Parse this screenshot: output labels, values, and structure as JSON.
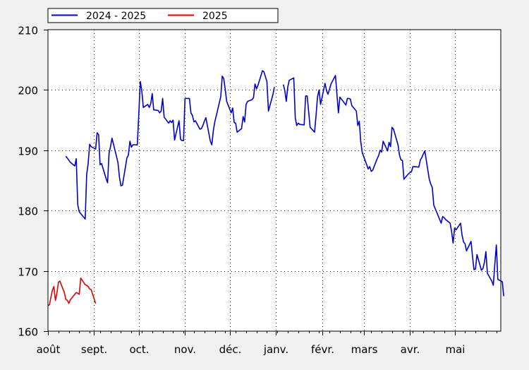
{
  "chart_data": {
    "type": "line",
    "title": "",
    "xlabel": "",
    "ylabel": "",
    "ylim": [
      160,
      210
    ],
    "yticks": [
      160,
      170,
      180,
      190,
      200,
      210
    ],
    "grid": true,
    "legend_position": "top-left",
    "x_domain": [
      "2024-08-01",
      "2025-05-31"
    ],
    "months": [
      {
        "label": "août",
        "date": "2024-08-01"
      },
      {
        "label": "sept.",
        "date": "2024-09-01"
      },
      {
        "label": "oct.",
        "date": "2024-10-01"
      },
      {
        "label": "nov.",
        "date": "2024-11-01"
      },
      {
        "label": "déc.",
        "date": "2024-12-01"
      },
      {
        "label": "janv.",
        "date": "2025-01-01"
      },
      {
        "label": "févr.",
        "date": "2025-02-01"
      },
      {
        "label": "mars",
        "date": "2025-03-01"
      },
      {
        "label": "avr.",
        "date": "2025-04-01"
      },
      {
        "label": "mai",
        "date": "2025-05-01"
      }
    ],
    "series": [
      {
        "name": "2024 - 2025",
        "color": "#0000cc",
        "points": [
          [
            "2024-08-13",
            189.0
          ],
          [
            "2024-08-14",
            188.7
          ],
          [
            "2024-08-16",
            188.0
          ],
          [
            "2024-08-19",
            187.4
          ],
          [
            "2024-08-20",
            188.6
          ],
          [
            "2024-08-21",
            181.0
          ],
          [
            "2024-08-22",
            179.8
          ],
          [
            "2024-08-26",
            178.6
          ],
          [
            "2024-08-27",
            186.0
          ],
          [
            "2024-08-28",
            187.8
          ],
          [
            "2024-08-29",
            191.0
          ],
          [
            "2024-08-30",
            190.6
          ],
          [
            "2024-09-02",
            190.2
          ],
          [
            "2024-09-03",
            192.9
          ],
          [
            "2024-09-04",
            192.6
          ],
          [
            "2024-09-05",
            187.6
          ],
          [
            "2024-09-06",
            187.8
          ],
          [
            "2024-09-09",
            185.3
          ],
          [
            "2024-09-10",
            184.6
          ],
          [
            "2024-09-11",
            189.5
          ],
          [
            "2024-09-12",
            190.6
          ],
          [
            "2024-09-13",
            192.0
          ],
          [
            "2024-09-16",
            189.0
          ],
          [
            "2024-09-17",
            187.9
          ],
          [
            "2024-09-18",
            185.5
          ],
          [
            "2024-09-19",
            184.1
          ],
          [
            "2024-09-20",
            184.2
          ],
          [
            "2024-09-23",
            188.7
          ],
          [
            "2024-09-24",
            189.2
          ],
          [
            "2024-09-25",
            191.5
          ],
          [
            "2024-09-26",
            190.5
          ],
          [
            "2024-09-27",
            190.9
          ],
          [
            "2024-09-30",
            190.9
          ],
          [
            "2024-10-01",
            196.0
          ],
          [
            "2024-10-02",
            201.4
          ],
          [
            "2024-10-03",
            199.9
          ],
          [
            "2024-10-04",
            197.1
          ],
          [
            "2024-10-07",
            197.6
          ],
          [
            "2024-10-08",
            197.1
          ],
          [
            "2024-10-09",
            197.7
          ],
          [
            "2024-10-10",
            199.4
          ],
          [
            "2024-10-11",
            196.7
          ],
          [
            "2024-10-14",
            196.6
          ],
          [
            "2024-10-15",
            196.2
          ],
          [
            "2024-10-16",
            196.5
          ],
          [
            "2024-10-17",
            198.6
          ],
          [
            "2024-10-18",
            195.5
          ],
          [
            "2024-10-21",
            194.5
          ],
          [
            "2024-10-22",
            194.9
          ],
          [
            "2024-10-23",
            194.6
          ],
          [
            "2024-10-24",
            195.0
          ],
          [
            "2024-10-25",
            191.7
          ],
          [
            "2024-10-28",
            194.9
          ],
          [
            "2024-10-29",
            191.8
          ],
          [
            "2024-10-30",
            191.6
          ],
          [
            "2024-10-31",
            191.6
          ],
          [
            "2024-11-01",
            198.6
          ],
          [
            "2024-11-04",
            198.6
          ],
          [
            "2024-11-05",
            196.2
          ],
          [
            "2024-11-06",
            195.8
          ],
          [
            "2024-11-07",
            194.7
          ],
          [
            "2024-11-08",
            194.9
          ],
          [
            "2024-11-11",
            193.5
          ],
          [
            "2024-11-12",
            193.6
          ],
          [
            "2024-11-13",
            194.1
          ],
          [
            "2024-11-14",
            194.8
          ],
          [
            "2024-11-15",
            195.4
          ],
          [
            "2024-11-18",
            191.5
          ],
          [
            "2024-11-19",
            190.9
          ],
          [
            "2024-11-20",
            193.2
          ],
          [
            "2024-11-21",
            194.7
          ],
          [
            "2024-11-22",
            195.7
          ],
          [
            "2024-11-25",
            198.9
          ],
          [
            "2024-11-26",
            202.3
          ],
          [
            "2024-11-27",
            201.9
          ],
          [
            "2024-11-28",
            200.1
          ],
          [
            "2024-11-29",
            198.1
          ],
          [
            "2024-12-02",
            196.2
          ],
          [
            "2024-12-03",
            197.0
          ],
          [
            "2024-12-04",
            194.6
          ],
          [
            "2024-12-05",
            194.5
          ],
          [
            "2024-12-06",
            193.0
          ],
          [
            "2024-12-09",
            193.6
          ],
          [
            "2024-12-10",
            195.6
          ],
          [
            "2024-12-11",
            194.7
          ],
          [
            "2024-12-12",
            197.6
          ],
          [
            "2024-12-13",
            198.1
          ],
          [
            "2024-12-16",
            198.4
          ],
          [
            "2024-12-17",
            198.7
          ],
          [
            "2024-12-18",
            201.0
          ],
          [
            "2024-12-19",
            200.2
          ],
          [
            "2024-12-20",
            200.8
          ],
          [
            "2024-12-23",
            203.2
          ],
          [
            "2024-12-24",
            203.0
          ],
          [
            "2024-12-26",
            201.4
          ],
          [
            "2024-12-27",
            196.5
          ],
          [
            "2024-12-30",
            199.2
          ],
          [
            "2024-12-31",
            200.5
          ],
          null,
          [
            "2025-01-06",
            200.9
          ],
          [
            "2025-01-07",
            199.9
          ],
          [
            "2025-01-08",
            198.1
          ],
          [
            "2025-01-09",
            200.5
          ],
          [
            "2025-01-10",
            201.6
          ],
          [
            "2025-01-13",
            202.0
          ],
          [
            "2025-01-14",
            195.4
          ],
          [
            "2025-01-15",
            194.1
          ],
          [
            "2025-01-16",
            194.5
          ],
          [
            "2025-01-17",
            194.3
          ],
          [
            "2025-01-20",
            194.2
          ],
          [
            "2025-01-21",
            199.0
          ],
          [
            "2025-01-22",
            199.0
          ],
          [
            "2025-01-23",
            196.4
          ],
          [
            "2025-01-24",
            193.8
          ],
          [
            "2025-01-27",
            193.0
          ],
          [
            "2025-01-28",
            195.8
          ],
          [
            "2025-01-29",
            198.9
          ],
          [
            "2025-01-30",
            200.0
          ],
          [
            "2025-01-31",
            197.6
          ],
          [
            "2025-02-03",
            201.1
          ],
          [
            "2025-02-04",
            199.9
          ],
          [
            "2025-02-05",
            199.3
          ],
          [
            "2025-02-06",
            200.1
          ],
          [
            "2025-02-07",
            201.0
          ],
          [
            "2025-02-10",
            202.4
          ],
          [
            "2025-02-11",
            199.3
          ],
          [
            "2025-02-12",
            196.2
          ],
          [
            "2025-02-13",
            198.8
          ],
          [
            "2025-02-14",
            198.5
          ],
          [
            "2025-02-17",
            197.5
          ],
          [
            "2025-02-18",
            198.6
          ],
          [
            "2025-02-19",
            198.6
          ],
          [
            "2025-02-20",
            198.5
          ],
          [
            "2025-02-21",
            197.4
          ],
          [
            "2025-02-24",
            196.5
          ],
          [
            "2025-02-25",
            194.1
          ],
          [
            "2025-02-26",
            194.8
          ],
          [
            "2025-02-27",
            191.4
          ],
          [
            "2025-02-28",
            189.6
          ],
          [
            "2025-03-03",
            187.6
          ],
          [
            "2025-03-04",
            186.9
          ],
          [
            "2025-03-05",
            187.3
          ],
          [
            "2025-03-06",
            186.5
          ],
          [
            "2025-03-07",
            186.7
          ],
          [
            "2025-03-10",
            188.6
          ],
          [
            "2025-03-11",
            189.1
          ],
          [
            "2025-03-12",
            190.0
          ],
          [
            "2025-03-13",
            189.7
          ],
          [
            "2025-03-14",
            191.5
          ],
          [
            "2025-03-17",
            189.9
          ],
          [
            "2025-03-18",
            191.3
          ],
          [
            "2025-03-19",
            190.6
          ],
          [
            "2025-03-20",
            193.8
          ],
          [
            "2025-03-21",
            193.5
          ],
          [
            "2025-03-24",
            190.9
          ],
          [
            "2025-03-25",
            189.2
          ],
          [
            "2025-03-26",
            188.4
          ],
          [
            "2025-03-27",
            188.3
          ],
          [
            "2025-03-28",
            185.2
          ],
          [
            "2025-03-31",
            186.1
          ],
          [
            "2025-04-01",
            186.3
          ],
          [
            "2025-04-02",
            186.4
          ],
          [
            "2025-04-03",
            187.3
          ],
          [
            "2025-04-04",
            187.3
          ],
          [
            "2025-04-07",
            187.2
          ],
          [
            "2025-04-08",
            188.4
          ],
          [
            "2025-04-09",
            188.8
          ],
          [
            "2025-04-10",
            189.4
          ],
          [
            "2025-04-11",
            189.9
          ],
          [
            "2025-04-14",
            185.2
          ],
          [
            "2025-04-15",
            184.4
          ],
          [
            "2025-04-16",
            183.8
          ],
          [
            "2025-04-17",
            180.9
          ],
          [
            "2025-04-22",
            177.9
          ],
          [
            "2025-04-23",
            179.0
          ],
          [
            "2025-04-24",
            178.8
          ],
          [
            "2025-04-25",
            178.5
          ],
          [
            "2025-04-28",
            177.9
          ],
          [
            "2025-04-29",
            176.5
          ],
          [
            "2025-04-30",
            174.6
          ],
          [
            "2025-05-01",
            177.1
          ],
          [
            "2025-05-02",
            176.8
          ],
          [
            "2025-05-05",
            177.9
          ],
          [
            "2025-05-06",
            175.9
          ],
          [
            "2025-05-07",
            174.8
          ],
          [
            "2025-05-08",
            174.5
          ],
          [
            "2025-05-09",
            173.3
          ],
          [
            "2025-05-12",
            174.9
          ],
          [
            "2025-05-13",
            172.4
          ],
          [
            "2025-05-14",
            170.2
          ],
          [
            "2025-05-15",
            170.3
          ],
          [
            "2025-05-16",
            172.7
          ],
          [
            "2025-05-19",
            170.1
          ],
          [
            "2025-05-20",
            170.4
          ],
          [
            "2025-05-21",
            171.4
          ],
          [
            "2025-05-22",
            173.2
          ],
          [
            "2025-05-23",
            169.6
          ],
          [
            "2025-05-26",
            168.3
          ],
          [
            "2025-05-27",
            167.6
          ],
          [
            "2025-05-28",
            171.2
          ],
          [
            "2025-05-29",
            174.3
          ],
          [
            "2025-05-30",
            168.6
          ],
          [
            "2025-06-02",
            168.2
          ],
          [
            "2025-06-03",
            165.8
          ]
        ]
      },
      {
        "name": "2025",
        "color": "#dd0000",
        "points": [
          [
            "2024-08-01",
            164.2
          ],
          [
            "2024-08-02",
            164.4
          ],
          [
            "2024-08-04",
            166.8
          ],
          [
            "2024-08-05",
            167.4
          ],
          [
            "2024-08-06",
            165.1
          ],
          [
            "2024-08-07",
            166.3
          ],
          [
            "2024-08-08",
            168.1
          ],
          [
            "2024-08-09",
            168.3
          ],
          [
            "2024-08-12",
            166.4
          ],
          [
            "2024-08-13",
            165.3
          ],
          [
            "2024-08-14",
            165.1
          ],
          [
            "2024-08-15",
            164.6
          ],
          [
            "2024-08-16",
            165.2
          ],
          [
            "2024-08-19",
            166.1
          ],
          [
            "2024-08-20",
            166.4
          ],
          [
            "2024-08-21",
            166.3
          ],
          [
            "2024-08-22",
            166.1
          ],
          [
            "2024-08-23",
            168.8
          ],
          [
            "2024-08-26",
            167.7
          ],
          [
            "2024-08-27",
            167.6
          ],
          [
            "2024-08-28",
            167.4
          ],
          [
            "2024-08-29",
            167.0
          ],
          [
            "2024-08-30",
            166.9
          ],
          [
            "2024-09-02",
            164.6
          ]
        ]
      }
    ]
  }
}
